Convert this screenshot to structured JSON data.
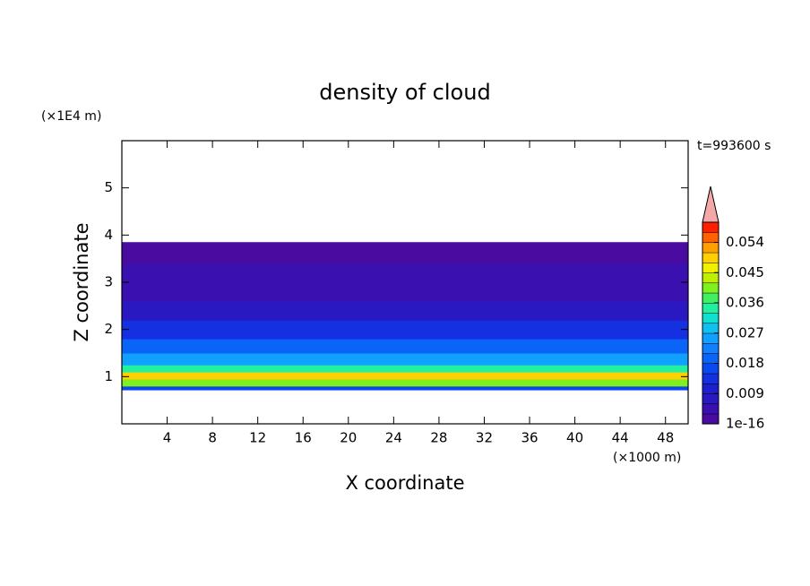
{
  "chart_data": {
    "type": "contour",
    "title": "density of cloud",
    "time_label": "t=993600 s",
    "xlabel": "X coordinate",
    "xunit": "(×1000 m)",
    "ylabel": "Z coordinate",
    "yunit": "(×1E4 m)",
    "xlim": [
      0,
      50
    ],
    "xticks": [
      4,
      8,
      12,
      16,
      20,
      24,
      28,
      32,
      36,
      40,
      44,
      48
    ],
    "ylim": [
      0,
      6
    ],
    "yticks": [
      1,
      2,
      3,
      4,
      5
    ],
    "field": {
      "z_edges": [
        0.72,
        0.8,
        0.95,
        1.1,
        1.25,
        1.5,
        1.8,
        2.2,
        2.6,
        3.0,
        3.4,
        3.85
      ],
      "values": [
        0.015,
        0.04,
        0.05,
        0.035,
        0.025,
        0.018,
        0.012,
        0.008,
        0.005,
        0.003,
        0.001
      ]
    },
    "colorbar": {
      "lim": [
        0,
        0.06
      ],
      "ticks": [
        1e-16,
        0.009,
        0.018,
        0.027,
        0.036,
        0.045,
        0.054
      ],
      "colors": [
        "#4a0ca0",
        "#3a10b0",
        "#2a18c0",
        "#1e20d0",
        "#1430e0",
        "#0a48f0",
        "#0a64f8",
        "#1080ff",
        "#10a0ff",
        "#10c0f0",
        "#10e0d0",
        "#20f0a0",
        "#40f060",
        "#80f020",
        "#c0f000",
        "#f0f000",
        "#ffd000",
        "#ffa000",
        "#ff6000",
        "#ff2000"
      ],
      "extend_color": "#f4a8a8"
    }
  }
}
